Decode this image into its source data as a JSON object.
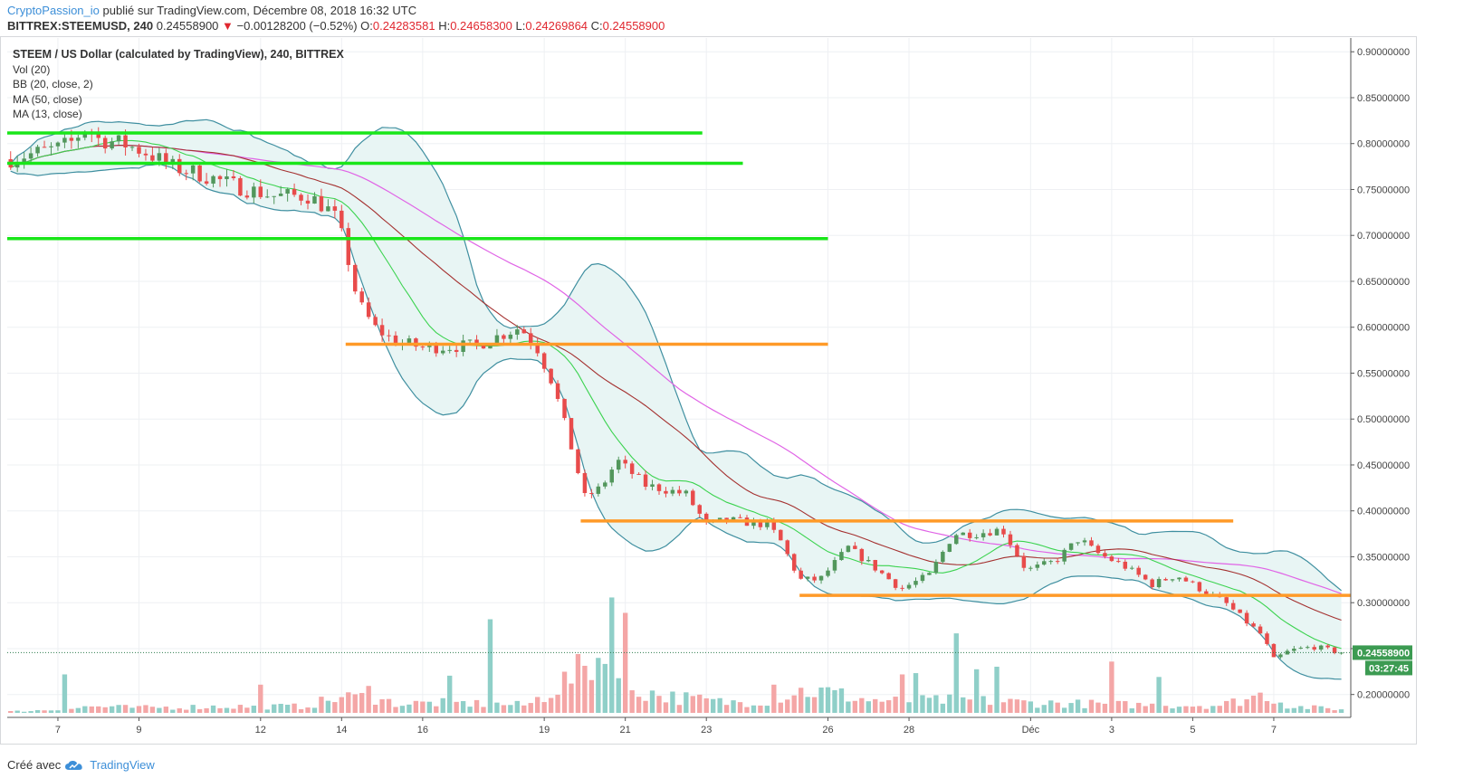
{
  "header": {
    "author": "CryptoPassion_io",
    "published_text": "publié sur TradingView.com, Décembre 08, 2018 16:32 UTC",
    "symbol": "BITTREX:STEEMUSD, 240",
    "price": "0.24558900",
    "change": "−0.00128200 (−0.52%)",
    "o_label": "O:",
    "o_value": "0.24283581",
    "h_label": "H:",
    "h_value": "0.24658300",
    "l_label": "L:",
    "l_value": "0.24269864",
    "c_label": "C:",
    "c_value": "0.24558900"
  },
  "legend": {
    "title": "STEEM / US Dollar (calculated by TradingView), 240, BITTREX",
    "vol": "Vol (20)",
    "bb": "BB (20, close, 2)",
    "ma50": "MA (50, close)",
    "ma13": "MA (13, close)"
  },
  "footer": {
    "created_with": "Créé avec",
    "brand": "TradingView"
  },
  "chart_data": {
    "type": "candlestick",
    "title": "STEEM / US Dollar (calculated by TradingView), 240, BITTREX",
    "price_ticks": [
      "0.90000000",
      "0.85000000",
      "0.80000000",
      "0.75000000",
      "0.70000000",
      "0.65000000",
      "0.60000000",
      "0.55000000",
      "0.50000000",
      "0.45000000",
      "0.40000000",
      "0.35000000",
      "0.30000000",
      "0.25000000",
      "0.20000000"
    ],
    "ylim": [
      0.18,
      0.915
    ],
    "x_ticks": [
      {
        "label": "7",
        "day": 0
      },
      {
        "label": "9",
        "day": 2
      },
      {
        "label": "12",
        "day": 5
      },
      {
        "label": "14",
        "day": 7
      },
      {
        "label": "16",
        "day": 9
      },
      {
        "label": "19",
        "day": 12
      },
      {
        "label": "21",
        "day": 14
      },
      {
        "label": "23",
        "day": 16
      },
      {
        "label": "26",
        "day": 19
      },
      {
        "label": "28",
        "day": 21
      },
      {
        "label": "Déc",
        "day": 24
      },
      {
        "label": "3",
        "day": 26
      },
      {
        "label": "5",
        "day": 28
      },
      {
        "label": "7",
        "day": 30
      }
    ],
    "xlim_days": [
      -1.25,
      31.9
    ],
    "current_price_label": "0.24558900",
    "countdown_label": "03:27:45",
    "current_price": 0.24559,
    "support_resistance": [
      {
        "color": "#19e619",
        "price": 0.8115,
        "from_day": -1.25,
        "to_day": 15.9
      },
      {
        "color": "#19e619",
        "price": 0.7785,
        "from_day": -1.25,
        "to_day": 16.9
      },
      {
        "color": "#19e619",
        "price": 0.6965,
        "from_day": -1.25,
        "to_day": 19.0
      },
      {
        "color": "#ff9a28",
        "price": 0.5815,
        "from_day": 7.1,
        "to_day": 19.0
      },
      {
        "color": "#ff9a28",
        "price": 0.389,
        "from_day": 12.9,
        "to_day": 29.0
      },
      {
        "color": "#ff9a28",
        "price": 0.308,
        "from_day": 18.3,
        "to_day": 31.9
      }
    ],
    "price_path": [
      [
        -1.25,
        0.783
      ],
      [
        0.0,
        0.795
      ],
      [
        0.3,
        0.8
      ],
      [
        0.7,
        0.818
      ],
      [
        1.0,
        0.805
      ],
      [
        1.6,
        0.8
      ],
      [
        2.2,
        0.79
      ],
      [
        2.8,
        0.775
      ],
      [
        3.5,
        0.767
      ],
      [
        4.3,
        0.755
      ],
      [
        5.3,
        0.743
      ],
      [
        6.2,
        0.743
      ],
      [
        6.8,
        0.724
      ],
      [
        7.05,
        0.694
      ],
      [
        7.4,
        0.628
      ],
      [
        7.8,
        0.6
      ],
      [
        8.3,
        0.585
      ],
      [
        9.0,
        0.578
      ],
      [
        10.3,
        0.58
      ],
      [
        11.4,
        0.6
      ],
      [
        11.8,
        0.58
      ],
      [
        12.2,
        0.54
      ],
      [
        12.6,
        0.48
      ],
      [
        13.0,
        0.415
      ],
      [
        13.4,
        0.425
      ],
      [
        13.8,
        0.455
      ],
      [
        14.5,
        0.428
      ],
      [
        15.5,
        0.418
      ],
      [
        16.0,
        0.385
      ],
      [
        16.5,
        0.39
      ],
      [
        17.5,
        0.385
      ],
      [
        17.8,
        0.37
      ],
      [
        18.3,
        0.325
      ],
      [
        18.8,
        0.325
      ],
      [
        19.5,
        0.36
      ],
      [
        20.1,
        0.34
      ],
      [
        20.8,
        0.315
      ],
      [
        21.5,
        0.33
      ],
      [
        22.1,
        0.375
      ],
      [
        22.6,
        0.375
      ],
      [
        23.3,
        0.38
      ],
      [
        23.9,
        0.335
      ],
      [
        24.6,
        0.345
      ],
      [
        25.2,
        0.37
      ],
      [
        25.6,
        0.355
      ],
      [
        26.3,
        0.34
      ],
      [
        27.0,
        0.32
      ],
      [
        27.6,
        0.33
      ],
      [
        28.3,
        0.312
      ],
      [
        28.8,
        0.3
      ],
      [
        29.3,
        0.28
      ],
      [
        29.7,
        0.265
      ],
      [
        30.0,
        0.238
      ],
      [
        30.4,
        0.248
      ],
      [
        31.0,
        0.252
      ],
      [
        31.6,
        0.246
      ]
    ],
    "volume_path": [
      [
        -1.25,
        0.01
      ],
      [
        0.0,
        0.025
      ],
      [
        0.8,
        0.05
      ],
      [
        2.0,
        0.04
      ],
      [
        4.0,
        0.05
      ],
      [
        6.0,
        0.05
      ],
      [
        7.0,
        0.12
      ],
      [
        7.5,
        0.12
      ],
      [
        8.5,
        0.07
      ],
      [
        9.5,
        0.08
      ],
      [
        10.5,
        0.07
      ],
      [
        11.6,
        0.06
      ],
      [
        12.4,
        0.22
      ],
      [
        12.9,
        0.32
      ],
      [
        13.3,
        0.45
      ],
      [
        14.0,
        0.2
      ],
      [
        15.0,
        0.13
      ],
      [
        16.5,
        0.08
      ],
      [
        17.5,
        0.1
      ],
      [
        18.3,
        0.17
      ],
      [
        19.0,
        0.16
      ],
      [
        20.0,
        0.1
      ],
      [
        20.8,
        0.09
      ],
      [
        22.3,
        0.1
      ],
      [
        24.0,
        0.08
      ],
      [
        25.5,
        0.07
      ],
      [
        27.0,
        0.06
      ],
      [
        28.7,
        0.06
      ],
      [
        29.8,
        0.15
      ],
      [
        30.4,
        0.05
      ],
      [
        31.6,
        0.03
      ]
    ],
    "volume_spikes": [
      {
        "day": 0.1,
        "v": 0.3,
        "dir": "up"
      },
      {
        "day": 5.0,
        "v": 0.22,
        "dir": "up"
      },
      {
        "day": 7.6,
        "v": 0.21,
        "dir": "down"
      },
      {
        "day": 9.6,
        "v": 0.29,
        "dir": "up"
      },
      {
        "day": 10.6,
        "v": 0.73,
        "dir": "down"
      },
      {
        "day": 13.7,
        "v": 0.9,
        "dir": "down"
      },
      {
        "day": 14.0,
        "v": 0.78,
        "dir": "down"
      },
      {
        "day": 17.7,
        "v": 0.22,
        "dir": "down"
      },
      {
        "day": 20.8,
        "v": 0.3,
        "dir": "down"
      },
      {
        "day": 21.1,
        "v": 0.31,
        "dir": "up"
      },
      {
        "day": 22.1,
        "v": 0.62,
        "dir": "down"
      },
      {
        "day": 22.6,
        "v": 0.34,
        "dir": "down"
      },
      {
        "day": 23.1,
        "v": 0.36,
        "dir": "down"
      },
      {
        "day": 26.0,
        "v": 0.4,
        "dir": "down"
      },
      {
        "day": 27.1,
        "v": 0.28,
        "dir": "up"
      }
    ],
    "volume_max_fraction_of_pane": 0.5,
    "colors": {
      "up": "#52975c",
      "down": "#e84b4b",
      "vol_up": "#8fcfc8",
      "vol_down": "#f4a6a6",
      "ma13": "#3bd34f",
      "ma50": "#e064e6",
      "ma_slow": "#a4302f",
      "bb": "#3f8fa0",
      "bb_fill": "#e8f5f4",
      "grid": "#eef0f3",
      "axis_text": "#444444"
    }
  }
}
